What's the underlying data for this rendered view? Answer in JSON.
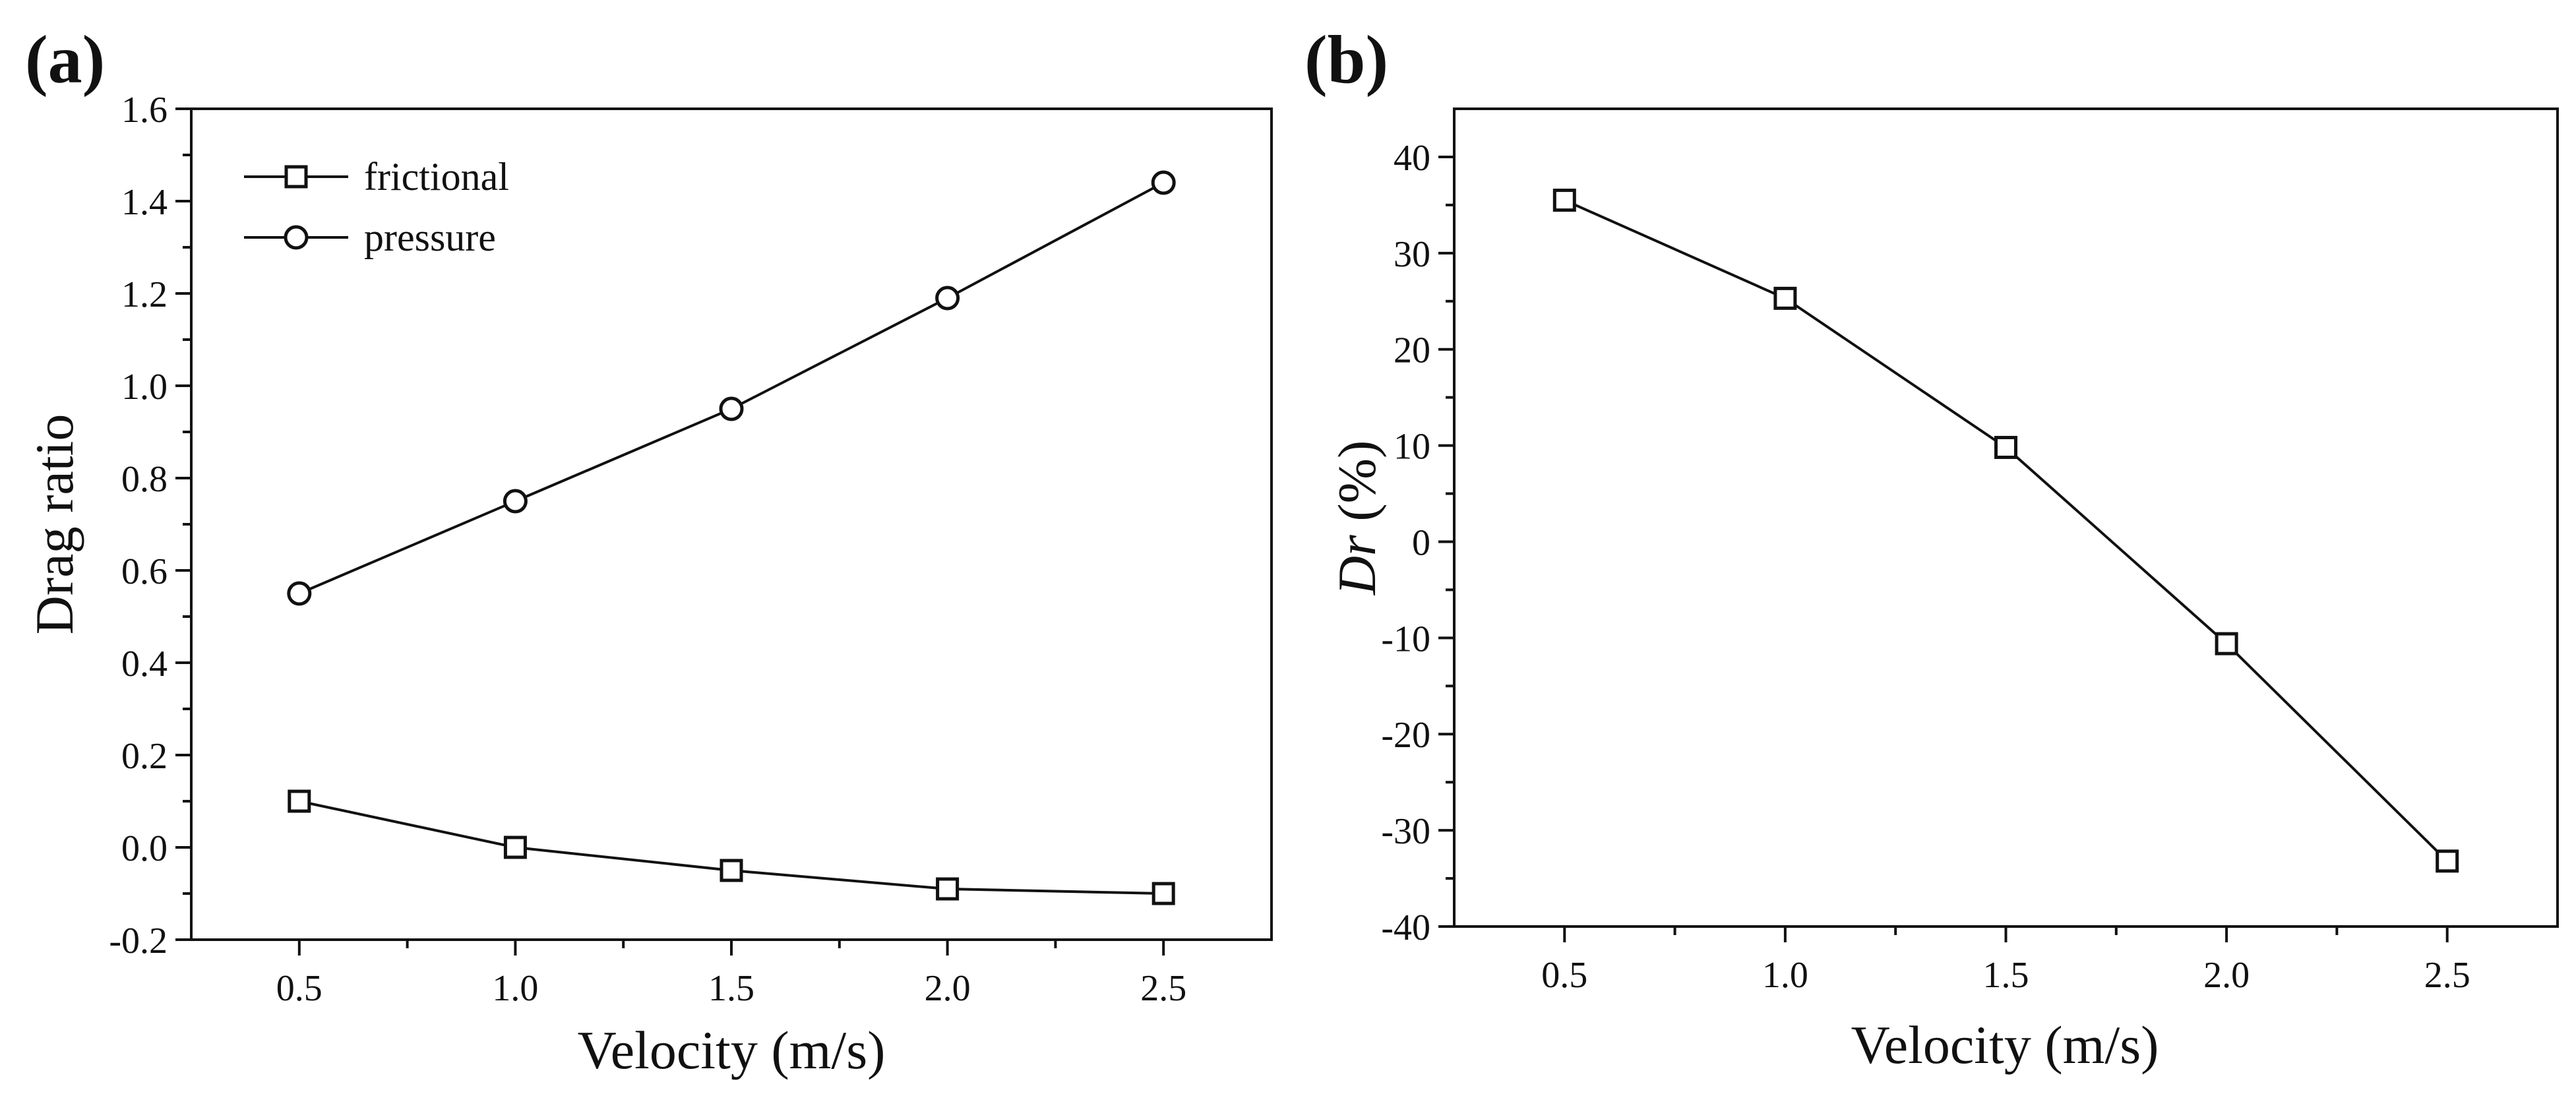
{
  "chart_data": [
    {
      "type": "line",
      "panel_label": "(a)",
      "title": "",
      "xlabel": "Velocity (m/s)",
      "ylabel": "Drag ratio",
      "xlim": [
        0.25,
        2.75
      ],
      "ylim": [
        -0.2,
        1.6
      ],
      "xticks": [
        0.5,
        1.0,
        1.5,
        2.0,
        2.5
      ],
      "xtick_labels": [
        "0.5",
        "1.0",
        "1.5",
        "2.0",
        "2.5"
      ],
      "yticks": [
        -0.2,
        0.0,
        0.2,
        0.4,
        0.6,
        0.8,
        1.0,
        1.2,
        1.4,
        1.6
      ],
      "ytick_labels": [
        "-0.2",
        "0.0",
        "0.2",
        "0.4",
        "0.6",
        "0.8",
        "1.0",
        "1.2",
        "1.4",
        "1.6"
      ],
      "grid": false,
      "legend_position": "top-left",
      "x": [
        0.5,
        1.0,
        1.5,
        2.0,
        2.5
      ],
      "series": [
        {
          "name": "frictional",
          "marker": "square",
          "values": [
            0.1,
            0.0,
            -0.05,
            -0.09,
            -0.1
          ]
        },
        {
          "name": "pressure",
          "marker": "circle",
          "values": [
            0.55,
            0.75,
            0.95,
            1.19,
            1.44
          ]
        }
      ]
    },
    {
      "type": "line",
      "panel_label": "(b)",
      "title": "",
      "xlabel": "Velocity (m/s)",
      "ylabel_italic": "Dr",
      "ylabel_rest": " (%)",
      "xlim": [
        0.25,
        2.75
      ],
      "ylim": [
        -40,
        45
      ],
      "xticks": [
        0.5,
        1.0,
        1.5,
        2.0,
        2.5
      ],
      "xtick_labels": [
        "0.5",
        "1.0",
        "1.5",
        "2.0",
        "2.5"
      ],
      "yticks": [
        -40,
        -30,
        -20,
        -10,
        0,
        10,
        20,
        30,
        40
      ],
      "ytick_labels": [
        "-40",
        "-30",
        "-20",
        "-10",
        "0",
        "10",
        "20",
        "30",
        "40"
      ],
      "grid": false,
      "x": [
        0.5,
        1.0,
        1.5,
        2.0,
        2.5
      ],
      "series": [
        {
          "name": "Dr",
          "marker": "square",
          "values": [
            35.5,
            25.3,
            9.8,
            -10.6,
            -33.2
          ]
        }
      ]
    }
  ]
}
